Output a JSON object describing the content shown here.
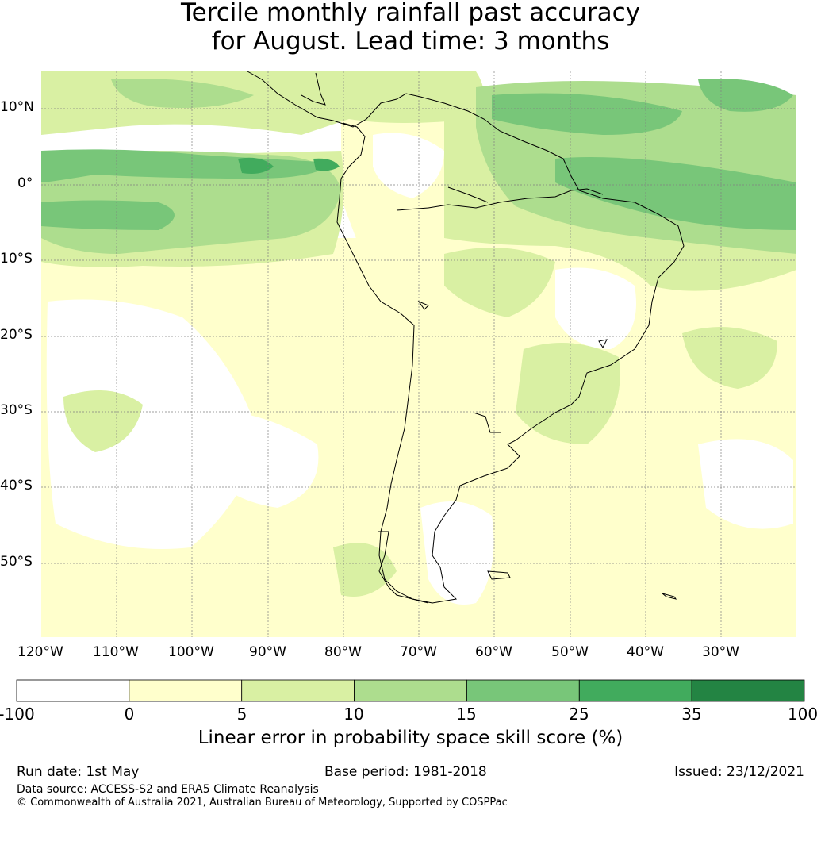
{
  "title": {
    "line1": "Tercile monthly rainfall past accuracy",
    "line2": "for August. Lead time: 3 months"
  },
  "map": {
    "lat_labels": [
      "10°N",
      "0°",
      "10°S",
      "20°S",
      "30°S",
      "40°S",
      "50°S"
    ],
    "lon_labels": [
      "120°W",
      "110°W",
      "100°W",
      "90°W",
      "80°W",
      "70°W",
      "60°W",
      "50°W",
      "40°W",
      "30°W"
    ],
    "gridline_color": "#808080",
    "coastline_color": "#000000"
  },
  "colorbar": {
    "ticks": [
      "-100",
      "0",
      "5",
      "10",
      "15",
      "25",
      "35",
      "100"
    ],
    "colors": [
      "#ffffff",
      "#ffffcc",
      "#d9f0a3",
      "#addd8e",
      "#78c679",
      "#41ab5d",
      "#238443"
    ],
    "label": "Linear error in probability space skill score (%)"
  },
  "footer": {
    "run_date": "Run date: 1st May",
    "base_period": "Base period: 1981-2018",
    "issued": "Issued: 23/12/2021",
    "data_source": "Data source: ACCESS-S2 and ERA5 Climate Reanalysis",
    "copyright": "© Commonwealth of Australia 2021, Australian Bureau of Meteorology, Supported by COSPPac"
  }
}
